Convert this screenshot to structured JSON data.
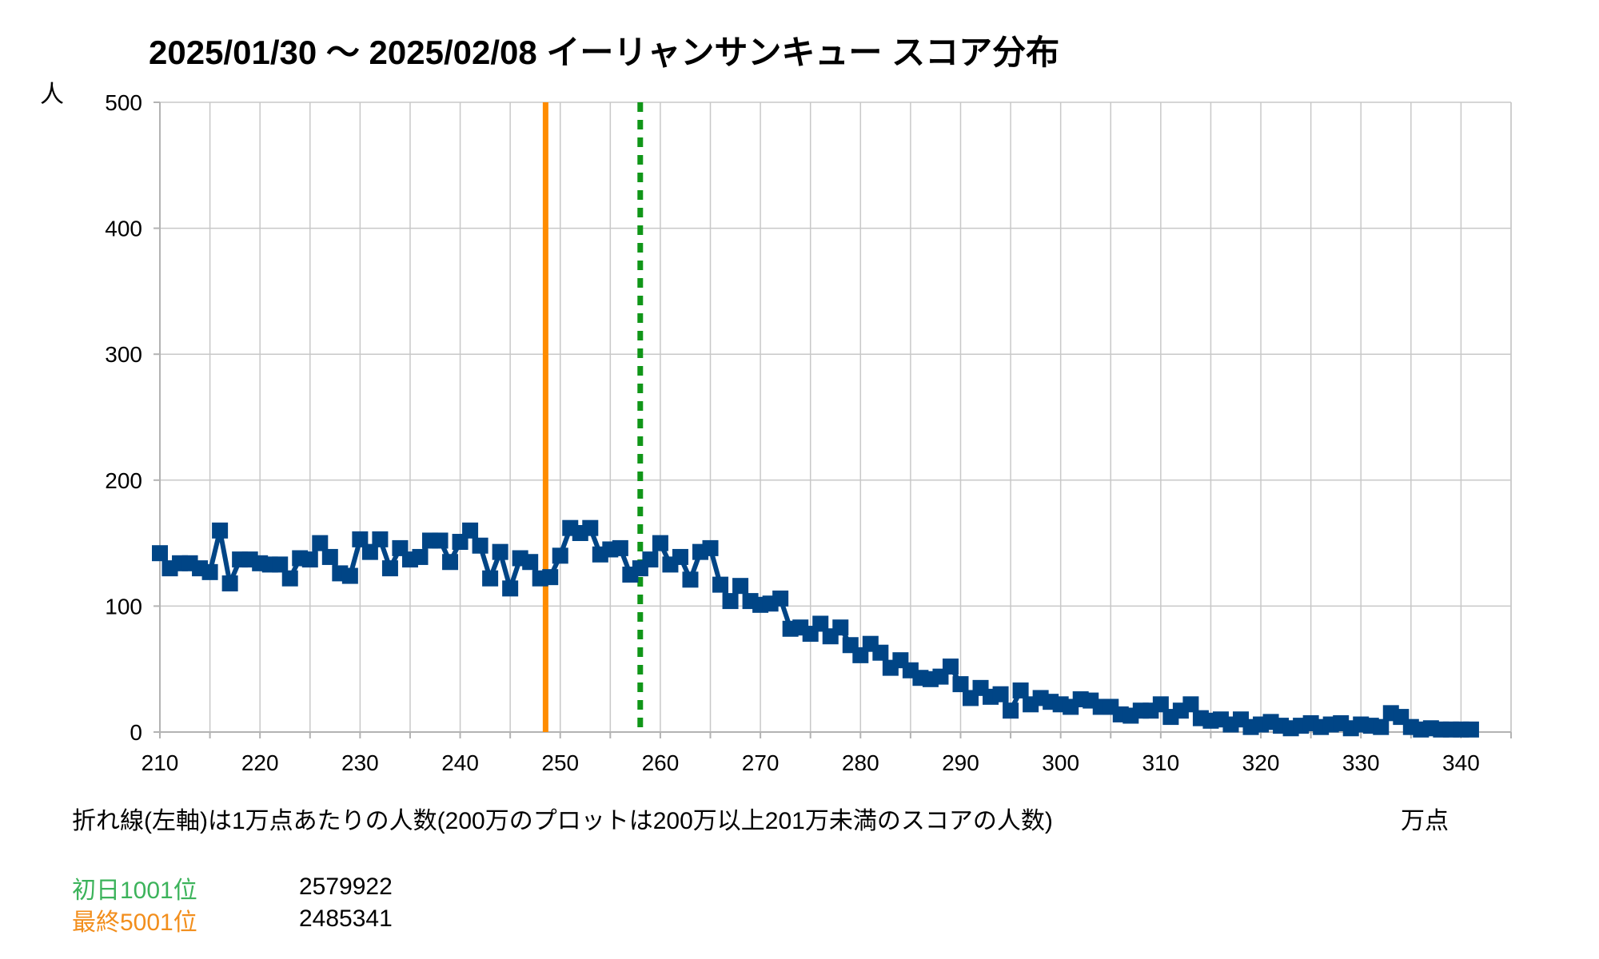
{
  "chart_data": {
    "type": "line",
    "title": "2025/01/30 ～ 2025/02/08 イーリャンサンキュー スコア分布",
    "ylabel": "人",
    "xlabel": "万点",
    "note": "折れ線(左軸)は1万点あたりの人数(200万のプロットは200万以上201万未満のスコアの人数)",
    "xlim": [
      210,
      345
    ],
    "ylim": [
      0,
      500
    ],
    "x_ticks": [
      210,
      220,
      230,
      240,
      250,
      260,
      270,
      280,
      290,
      300,
      310,
      320,
      330,
      340
    ],
    "y_ticks": [
      0,
      100,
      200,
      300,
      400,
      500
    ],
    "grid": true,
    "series": [
      {
        "color": "#004586",
        "marker": "square",
        "x": [
          210,
          211,
          212,
          213,
          214,
          215,
          216,
          217,
          218,
          219,
          220,
          221,
          222,
          223,
          224,
          225,
          226,
          227,
          228,
          229,
          230,
          231,
          232,
          233,
          234,
          235,
          236,
          237,
          238,
          239,
          240,
          241,
          242,
          243,
          244,
          245,
          246,
          247,
          248,
          249,
          250,
          251,
          252,
          253,
          254,
          255,
          256,
          257,
          258,
          259,
          260,
          261,
          262,
          263,
          264,
          265,
          266,
          267,
          268,
          269,
          270,
          271,
          272,
          273,
          274,
          275,
          276,
          277,
          278,
          279,
          280,
          281,
          282,
          283,
          284,
          285,
          286,
          287,
          288,
          289,
          290,
          291,
          292,
          293,
          294,
          295,
          296,
          297,
          298,
          299,
          300,
          301,
          302,
          303,
          304,
          305,
          306,
          307,
          308,
          309,
          310,
          311,
          312,
          313,
          314,
          315,
          316,
          317,
          318,
          319,
          320,
          321,
          322,
          323,
          324,
          325,
          326,
          327,
          328,
          329,
          330,
          331,
          332,
          333,
          334,
          335,
          336,
          337,
          338,
          339,
          340,
          341
        ],
        "y": [
          142,
          130,
          134,
          134,
          130,
          127,
          160,
          118,
          137,
          137,
          134,
          133,
          133,
          122,
          138,
          137,
          150,
          139,
          126,
          124,
          153,
          143,
          153,
          130,
          146,
          137,
          139,
          152,
          152,
          135,
          151,
          160,
          148,
          122,
          143,
          114,
          138,
          135,
          122,
          123,
          140,
          162,
          158,
          162,
          141,
          145,
          146,
          125,
          130,
          137,
          150,
          133,
          139,
          121,
          143,
          146,
          117,
          104,
          116,
          104,
          101,
          102,
          106,
          82,
          83,
          78,
          86,
          76,
          83,
          69,
          61,
          70,
          63,
          51,
          57,
          49,
          43,
          42,
          44,
          52,
          38,
          27,
          35,
          28,
          30,
          17,
          33,
          22,
          27,
          24,
          22,
          20,
          26,
          25,
          20,
          20,
          14,
          13,
          17,
          17,
          22,
          12,
          17,
          22,
          11,
          9,
          10,
          6,
          10,
          4,
          6,
          8,
          5,
          3,
          5,
          7,
          4,
          6,
          7,
          3,
          6,
          5,
          4,
          15,
          12,
          4,
          2,
          3,
          2,
          2,
          2,
          2
        ]
      }
    ],
    "reference_lines": [
      {
        "label": "最終5001位",
        "value_man": 248.5341,
        "color": "#ff8c00",
        "style": "solid"
      },
      {
        "label": "初日1001位",
        "value_man": 257.9922,
        "color": "#109618",
        "style": "dashed"
      }
    ]
  },
  "legend": {
    "first_day": {
      "label": "初日1001位",
      "value": "2579922",
      "color": "#3cb35b"
    },
    "final": {
      "label": "最終5001位",
      "value": "2485341",
      "color": "#f28e1c"
    }
  }
}
